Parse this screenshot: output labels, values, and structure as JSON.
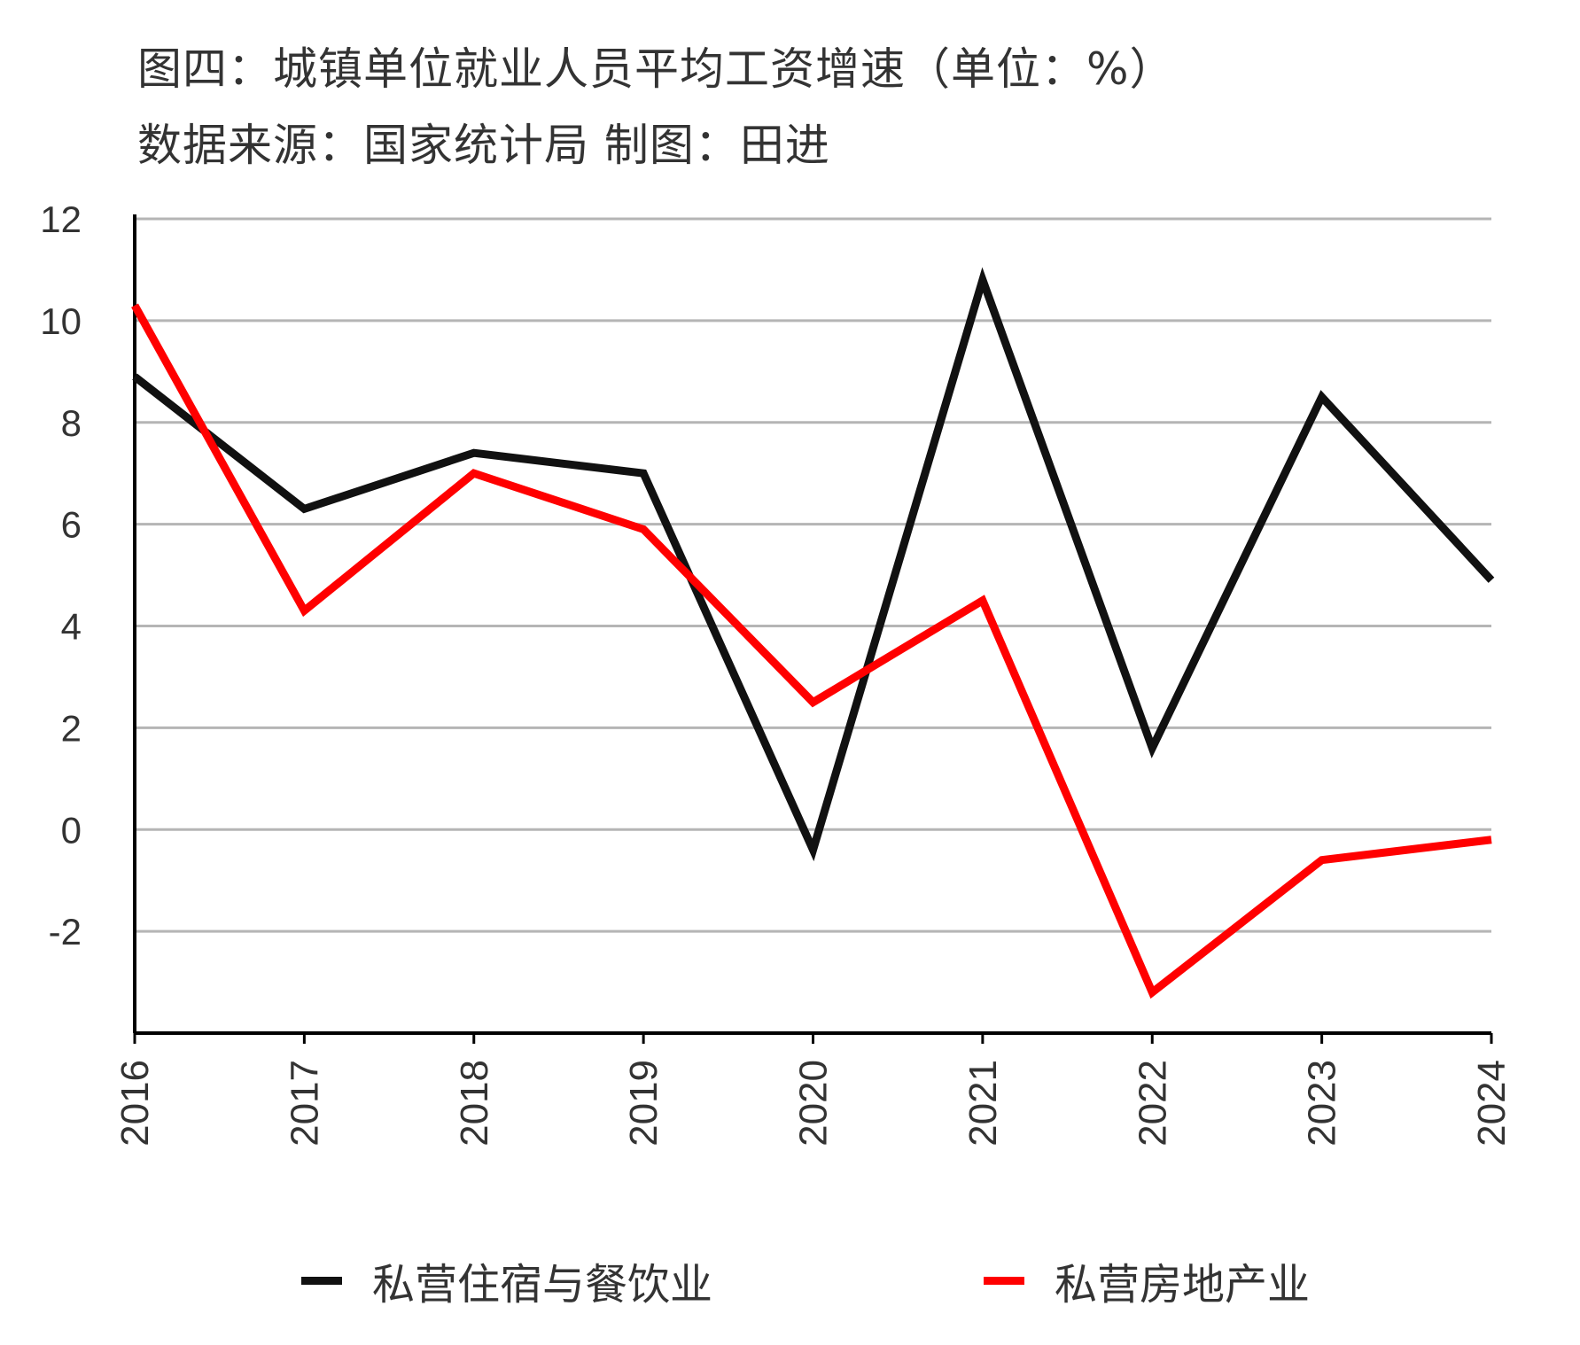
{
  "title": "图四：城镇单位就业人员平均工资增速（单位：%）",
  "subtitle": "数据来源：国家统计局 制图：田进",
  "chart_data": {
    "type": "line",
    "title": "图四：城镇单位就业人员平均工资增速（单位：%）",
    "xlabel": "",
    "ylabel": "",
    "categories": [
      "2016",
      "2017",
      "2018",
      "2019",
      "2020",
      "2021",
      "2022",
      "2023",
      "2024"
    ],
    "ylim": [
      -4,
      12
    ],
    "yticks": [
      12,
      10,
      8,
      6,
      4,
      2,
      0,
      -2
    ],
    "grid": true,
    "legend": "bottom",
    "series": [
      {
        "name": "私营住宿与餐饮业",
        "color": "#111111",
        "values": [
          8.9,
          6.3,
          7.4,
          7.0,
          -0.4,
          10.8,
          1.6,
          8.5,
          4.9
        ]
      },
      {
        "name": "私营房地产业",
        "color": "#ff0000",
        "values": [
          10.3,
          4.3,
          7.0,
          5.9,
          2.5,
          4.5,
          -3.2,
          -0.6,
          -0.2
        ]
      }
    ]
  }
}
